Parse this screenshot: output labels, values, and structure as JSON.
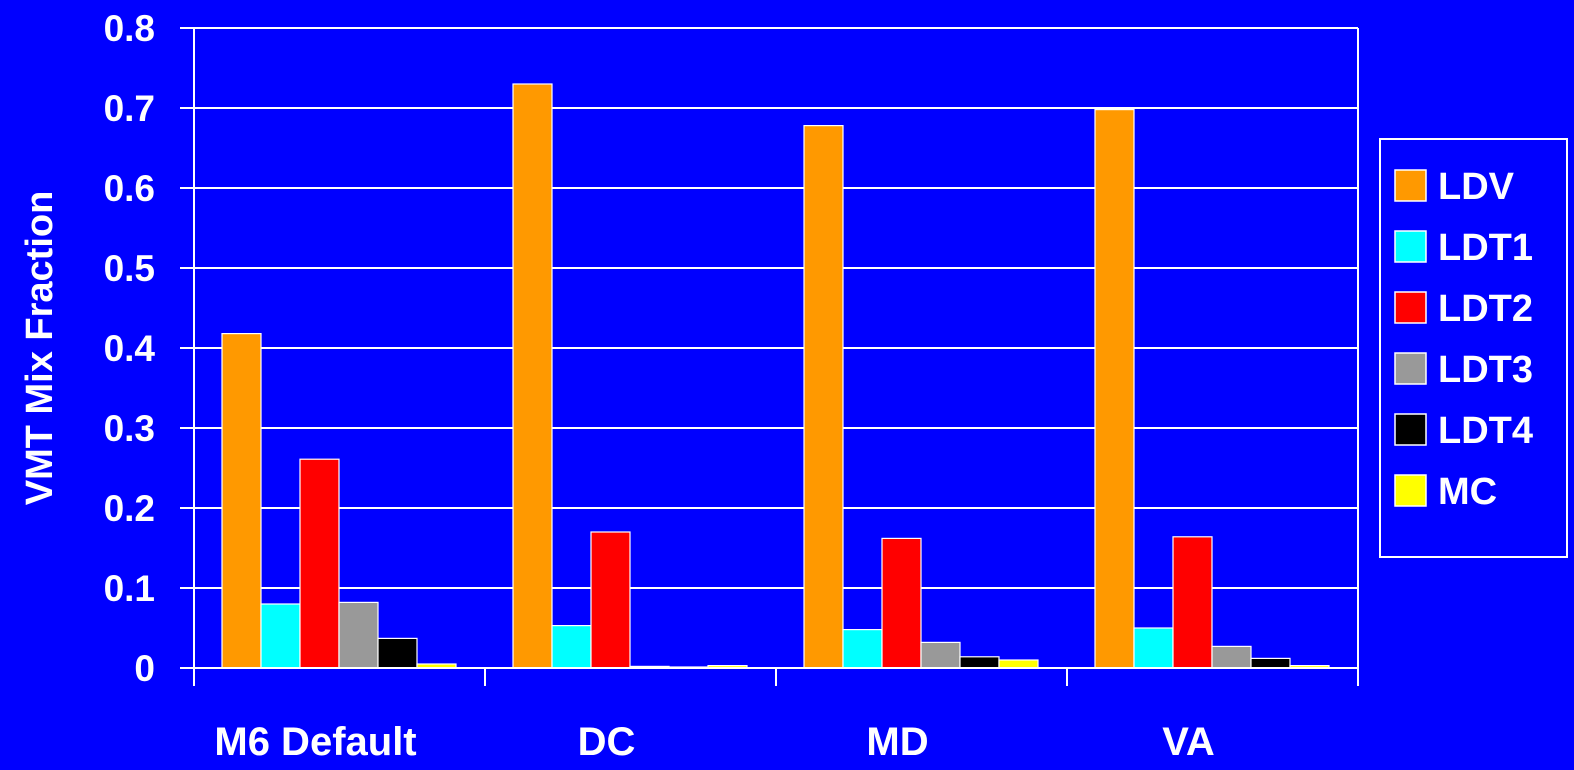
{
  "chart_data": {
    "type": "bar",
    "title": "",
    "xlabel": "",
    "ylabel": "VMT Mix Fraction",
    "categories": [
      "M6 Default",
      "DC",
      "MD",
      "VA"
    ],
    "ylim": [
      0,
      0.8
    ],
    "yticks": [
      0,
      0.1,
      0.2,
      0.3,
      0.4,
      0.5,
      0.6,
      0.7,
      0.8
    ],
    "ytick_labels": [
      "0",
      "0.1",
      "0.2",
      "0.3",
      "0.4",
      "0.5",
      "0.6",
      "0.7",
      "0.8"
    ],
    "grid": true,
    "legend_position": "right",
    "background_color": "#0000FF",
    "series": [
      {
        "name": "LDV",
        "color": "#FF9900",
        "values": [
          0.418,
          0.73,
          0.678,
          0.698
        ]
      },
      {
        "name": "LDT1",
        "color": "#00FFFF",
        "values": [
          0.08,
          0.053,
          0.048,
          0.05
        ]
      },
      {
        "name": "LDT2",
        "color": "#FF0000",
        "values": [
          0.261,
          0.17,
          0.162,
          0.164
        ]
      },
      {
        "name": "LDT3",
        "color": "#999999",
        "values": [
          0.082,
          0.002,
          0.032,
          0.027
        ]
      },
      {
        "name": "LDT4",
        "color": "#000000",
        "values": [
          0.037,
          0.001,
          0.014,
          0.012
        ]
      },
      {
        "name": "MC",
        "color": "#FFFF00",
        "values": [
          0.005,
          0.003,
          0.01,
          0.003
        ]
      }
    ]
  }
}
